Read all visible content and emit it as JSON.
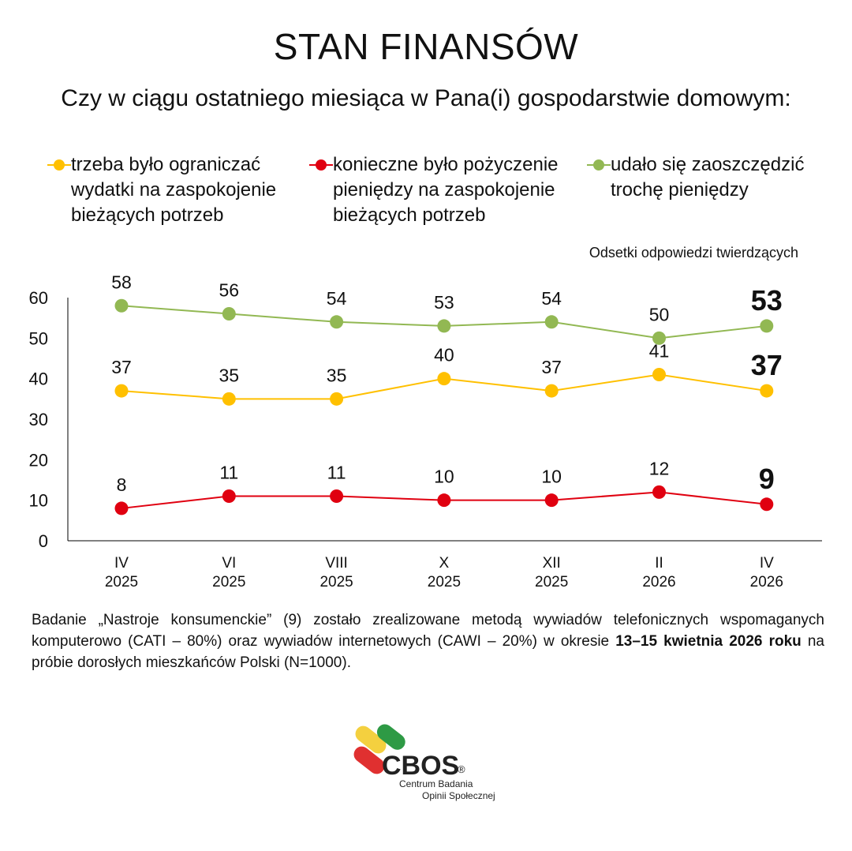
{
  "header": {
    "title": "STAN FINANSÓW",
    "subtitle": "Czy w ciągu ostatniego miesiąca w Pana(i) gospodarstwie domowym:"
  },
  "units_note": "Odsetki odpowiedzi twierdzących",
  "chart_data": {
    "type": "line",
    "categories": [
      [
        "IV",
        "2025"
      ],
      [
        "VI",
        "2025"
      ],
      [
        "VIII",
        "2025"
      ],
      [
        "X",
        "2025"
      ],
      [
        "XII",
        "2025"
      ],
      [
        "II",
        "2026"
      ],
      [
        "IV",
        "2026"
      ]
    ],
    "ylim": [
      0,
      60
    ],
    "yticks": [
      0,
      10,
      20,
      30,
      40,
      50,
      60
    ],
    "grid": false,
    "legend_position": "top",
    "series": [
      {
        "name": "trzeba było ograniczać wydatki na zaspokojenie bieżących potrzeb",
        "color": "#FFC000",
        "values": [
          37,
          35,
          35,
          40,
          37,
          41,
          37
        ]
      },
      {
        "name": "konieczne było pożyczenie pieniędzy na zaspokojenie bieżących potrzeb",
        "color": "#E00010",
        "values": [
          8,
          11,
          11,
          10,
          10,
          12,
          9
        ]
      },
      {
        "name": "udało się zaoszczędzić trochę pieniędzy",
        "color": "#92B853",
        "values": [
          58,
          56,
          54,
          53,
          54,
          50,
          53
        ]
      }
    ]
  },
  "footnote": {
    "part1": "Badanie „Nastroje konsumenckie” (9) zostało zrealizowane metodą wywiadów telefonicznych wspomaganych komputerowo (CATI – 80%) oraz wywiadów internetowych (CAWI – 20%) w okresie ",
    "bold": "13–15 kwietnia 2026 roku",
    "part2": " na próbie dorosłych mieszkańców Polski (N=1000)."
  },
  "logo": {
    "name": "CBOS",
    "registered": "®",
    "line1": "Centrum Badania",
    "line2": "Opinii Społecznej"
  }
}
